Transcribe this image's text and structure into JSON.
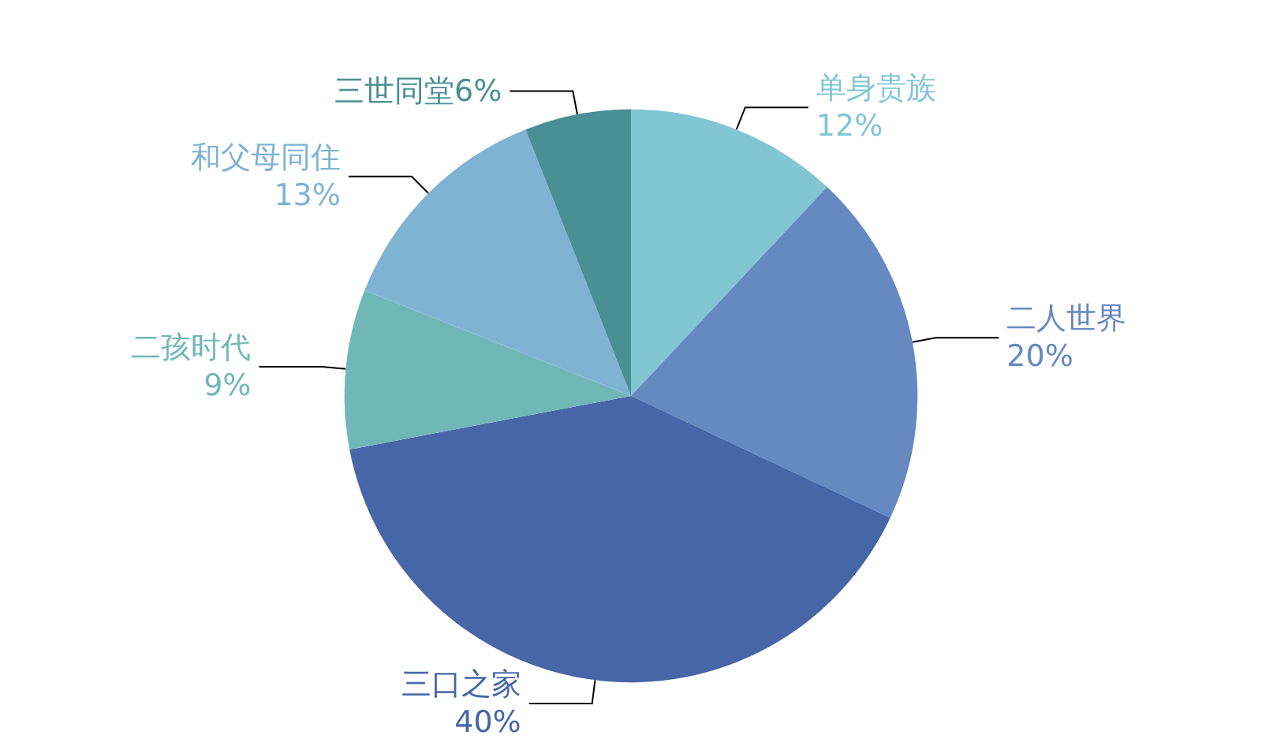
{
  "chart_data": {
    "type": "pie",
    "categories": [
      "单身贵族",
      "二人世界",
      "三口之家",
      "二孩时代",
      "和父母同住",
      "三世同堂"
    ],
    "values": [
      12,
      20,
      40,
      9,
      13,
      6
    ],
    "colors": [
      "#82c6d4",
      "#6589c0",
      "#4766a7",
      "#71b7b8",
      "#7eb3d4",
      "#4a8f94"
    ],
    "value_labels": [
      "12%",
      "20%",
      "40%",
      "9%",
      "13%",
      "6%"
    ],
    "legend": false
  }
}
